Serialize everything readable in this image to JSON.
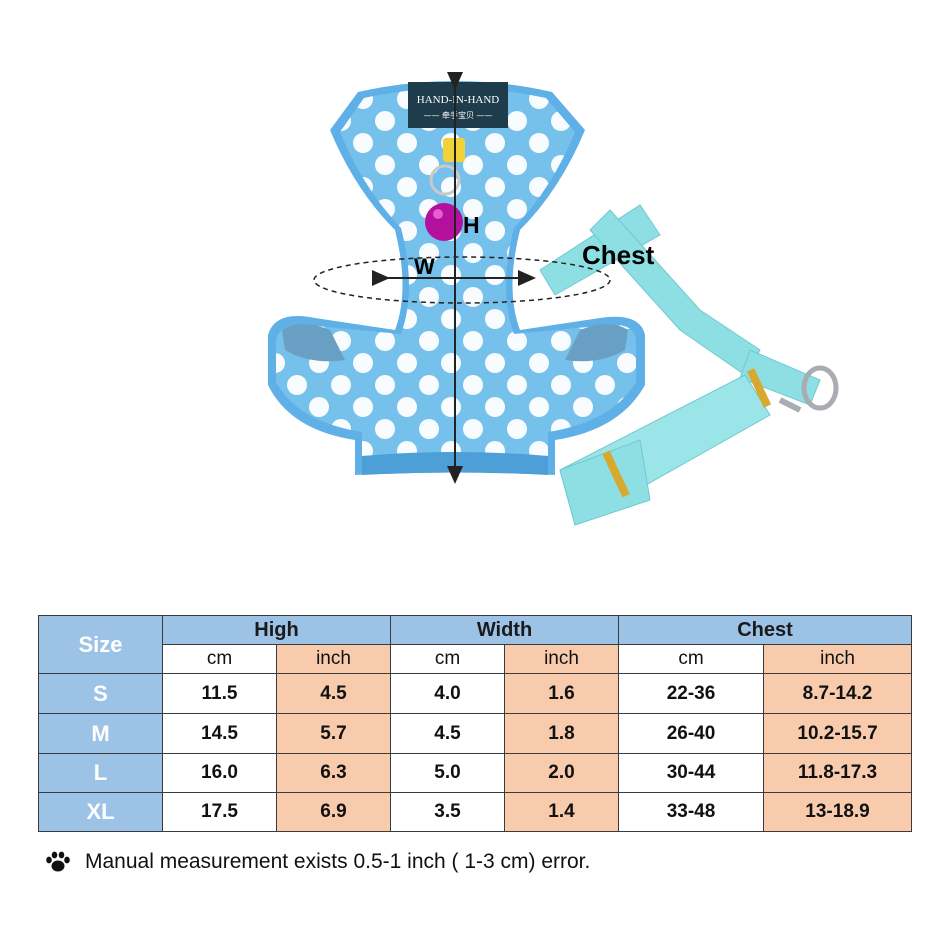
{
  "product": {
    "tag_brand": "HAND-IN-HAND",
    "tag_sub": "—— 牵手宝贝 ——",
    "label_h": "H",
    "label_w": "W",
    "label_chest": "Chest",
    "colors": {
      "harness": "#72bce8",
      "leash": "#8ddfe3",
      "dot": "#ffffff",
      "bell": "#b4109e"
    }
  },
  "table": {
    "size_header": "Size",
    "groups": [
      "High",
      "Width",
      "Chest"
    ],
    "units": [
      "cm",
      "inch",
      "cm",
      "inch",
      "cm",
      "inch"
    ],
    "rows": [
      {
        "size": "S",
        "values": [
          "11.5",
          "4.5",
          "4.0",
          "1.6",
          "22-36",
          "8.7-14.2"
        ]
      },
      {
        "size": "M",
        "values": [
          "14.5",
          "5.7",
          "4.5",
          "1.8",
          "26-40",
          "10.2-15.7"
        ]
      },
      {
        "size": "L",
        "values": [
          "16.0",
          "6.3",
          "5.0",
          "2.0",
          "30-44",
          "11.8-17.3"
        ]
      },
      {
        "size": "XL",
        "values": [
          "17.5",
          "6.9",
          "3.5",
          "1.4",
          "33-48",
          "13-18.9"
        ]
      }
    ],
    "colors": {
      "header_blue": "#9cc3e6",
      "inch_orange": "#f8cbad"
    }
  },
  "note": {
    "icon": "paw-icon",
    "text": "Manual measurement exists 0.5-1 inch ( 1-3 cm) error."
  }
}
